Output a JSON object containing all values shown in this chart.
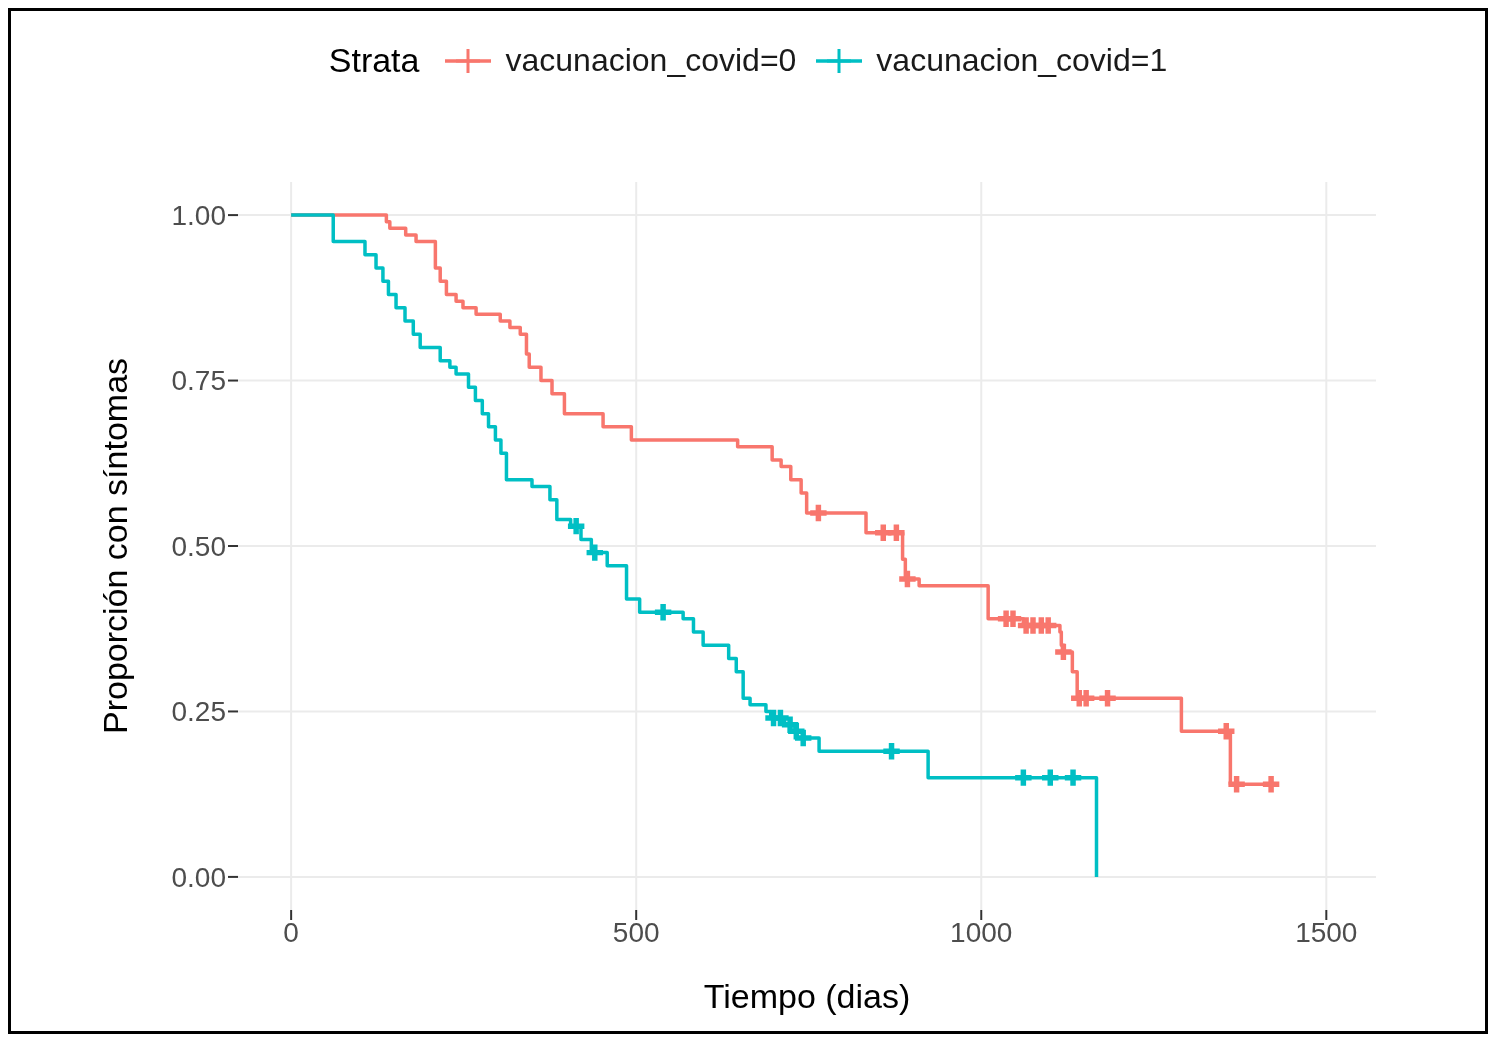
{
  "chart_data": {
    "type": "step",
    "xlabel": "Tiempo (dias)",
    "ylabel": "Proporción con síntomas",
    "legend_title": "Strata",
    "legend": "top",
    "grid": true,
    "xlim": [
      -77,
      1572
    ],
    "xticks": [
      0,
      500,
      1000,
      1500
    ],
    "ylim": [
      -0.05,
      1.05
    ],
    "yticks": [
      {
        "value": 0,
        "label": "0.00"
      },
      0.25,
      {
        "value": 0.5,
        "label": "0.50"
      },
      0.75,
      {
        "value": 1,
        "label": "1.00"
      }
    ],
    "series": [
      {
        "name": "vacunacion_covid=0",
        "color": "#f8766d",
        "x": [
          0,
          138,
          143,
          166,
          181,
          209,
          216,
          225,
          239,
          249,
          268,
          303,
          317,
          332,
          341,
          345,
          362,
          378,
          396,
          452,
          493,
          647,
          697,
          710,
          724,
          739,
          747,
          833,
          886,
          890,
          910,
          1010,
          1061,
          1114,
          1116,
          1120,
          1132,
          1139,
          1290,
          1361,
          1430
        ],
        "values": [
          1.0,
          0.99,
          0.98,
          0.97,
          0.96,
          0.92,
          0.9,
          0.88,
          0.87,
          0.86,
          0.85,
          0.84,
          0.83,
          0.82,
          0.79,
          0.77,
          0.75,
          0.73,
          0.7,
          0.68,
          0.66,
          0.65,
          0.63,
          0.62,
          0.6,
          0.58,
          0.55,
          0.52,
          0.48,
          0.45,
          0.44,
          0.39,
          0.38,
          0.37,
          0.35,
          0.34,
          0.31,
          0.27,
          0.22,
          0.14,
          0.14
        ]
      },
      {
        "name": "vacunacion_covid=1",
        "color": "#00bfc4",
        "x": [
          0,
          61,
          107,
          123,
          133,
          141,
          152,
          165,
          177,
          187,
          216,
          230,
          239,
          257,
          267,
          277,
          286,
          296,
          304,
          312,
          349,
          375,
          385,
          405,
          420,
          435,
          458,
          486,
          505,
          568,
          583,
          597,
          634,
          645,
          655,
          665,
          688,
          695,
          715,
          730,
          742,
          765,
          923,
          1167
        ],
        "values": [
          1.0,
          0.96,
          0.94,
          0.92,
          0.9,
          0.88,
          0.86,
          0.84,
          0.82,
          0.8,
          0.78,
          0.77,
          0.76,
          0.74,
          0.72,
          0.7,
          0.68,
          0.66,
          0.64,
          0.6,
          0.59,
          0.57,
          0.54,
          0.53,
          0.51,
          0.49,
          0.47,
          0.42,
          0.4,
          0.39,
          0.37,
          0.35,
          0.33,
          0.31,
          0.27,
          0.26,
          0.25,
          0.24,
          0.23,
          0.22,
          0.21,
          0.19,
          0.15,
          0
        ]
      },
      {
        "type": "scatter",
        "marker": "cross",
        "color": "#f8766d",
        "x": [
          764,
          858,
          877,
          893,
          1036,
          1046,
          1065,
          1075,
          1087,
          1097,
          1119,
          1142,
          1152,
          1183,
          1355,
          1370,
          1420
        ],
        "values": [
          0.55,
          0.52,
          0.52,
          0.45,
          0.39,
          0.39,
          0.38,
          0.38,
          0.38,
          0.38,
          0.34,
          0.27,
          0.27,
          0.27,
          0.22,
          0.14,
          0.14
        ]
      },
      {
        "type": "scatter",
        "marker": "cross",
        "color": "#00bfc4",
        "x": [
          413,
          440,
          539,
          699,
          709,
          723,
          732,
          742,
          870,
          1061,
          1100,
          1133
        ],
        "values": [
          0.53,
          0.49,
          0.4,
          0.24,
          0.24,
          0.23,
          0.22,
          0.21,
          0.19,
          0.15,
          0.15,
          0.15
        ]
      }
    ]
  }
}
